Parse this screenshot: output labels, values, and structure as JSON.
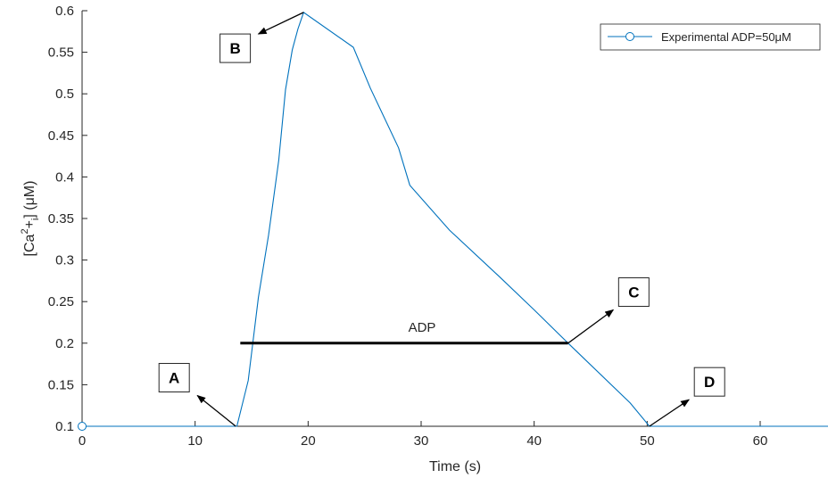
{
  "chart_data": {
    "type": "line",
    "xlabel": "Time (s)",
    "ylabel": {
      "prefix": "[Ca",
      "sup": "2",
      "plus": "+",
      "sub": "i",
      "suffix": "] (μM)"
    },
    "xlim": [
      0,
      66
    ],
    "ylim": [
      0.1,
      0.6
    ],
    "x_ticks": [
      "0",
      "10",
      "20",
      "30",
      "40",
      "50",
      "60"
    ],
    "x_tick_values": [
      0,
      10,
      20,
      30,
      40,
      50,
      60
    ],
    "y_ticks": [
      "0.1",
      "0.15",
      "0.2",
      "0.25",
      "0.3",
      "0.35",
      "0.4",
      "0.45",
      "0.5",
      "0.55",
      "0.6"
    ],
    "y_tick_values": [
      0.1,
      0.15,
      0.2,
      0.25,
      0.3,
      0.35,
      0.4,
      0.45,
      0.5,
      0.55,
      0.6
    ],
    "series": [
      {
        "name": "Experimental ADP=50μM",
        "color": "#0072BD",
        "marker": "circle",
        "x": [
          0,
          13.7,
          14.7,
          15.6,
          16.5,
          17.4,
          18.0,
          18.6,
          19.1,
          19.6,
          24.0,
          25.5,
          28.0,
          29.0,
          32.5,
          37.0,
          40.0,
          43.0,
          48.5,
          50.2,
          66
        ],
        "y": [
          0.1,
          0.1,
          0.155,
          0.255,
          0.33,
          0.42,
          0.505,
          0.553,
          0.578,
          0.598,
          0.556,
          0.507,
          0.435,
          0.39,
          0.336,
          0.279,
          0.24,
          0.2,
          0.128,
          0.1,
          0.1
        ]
      }
    ],
    "adp_bar": {
      "label": "ADP",
      "x_start": 14,
      "x_end": 43,
      "y": 0.2,
      "color": "#000000"
    },
    "annotations": [
      {
        "label": "A",
        "point": [
          13.6,
          0.1
        ],
        "arrow_tip": [
          10.2,
          0.137
        ]
      },
      {
        "label": "B",
        "point": [
          19.6,
          0.598
        ],
        "arrow_tip": [
          15.6,
          0.572
        ]
      },
      {
        "label": "C",
        "point": [
          43.0,
          0.2
        ],
        "arrow_tip": [
          47.0,
          0.24
        ]
      },
      {
        "label": "D",
        "point": [
          50.2,
          0.1
        ],
        "arrow_tip": [
          53.7,
          0.132
        ]
      }
    ],
    "legend_position": "top-right",
    "grid": false
  }
}
